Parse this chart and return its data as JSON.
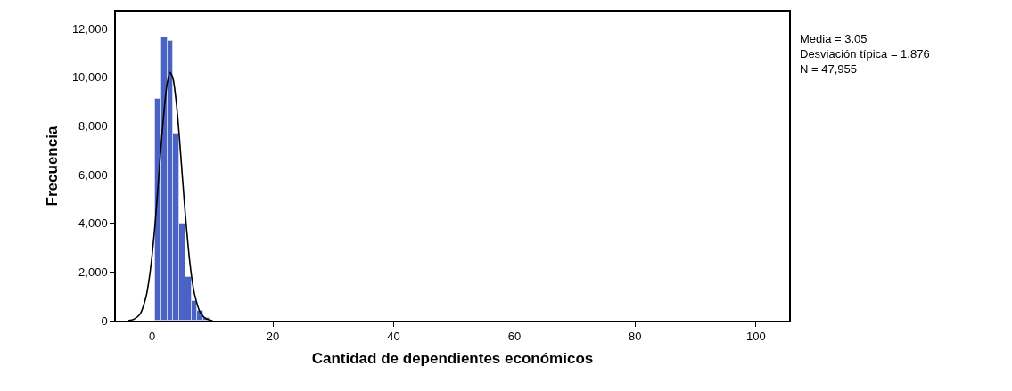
{
  "chart_data": {
    "type": "histogram",
    "xlabel": "Cantidad de dependientes económicos",
    "ylabel": "Frecuencia",
    "bins": [
      0.5,
      1.5,
      2.5,
      3.5,
      4.5,
      5.5,
      6.5,
      7.5,
      8.5,
      9.5,
      10.5
    ],
    "values": [
      9100,
      11650,
      11500,
      7700,
      4000,
      1800,
      790,
      400,
      120,
      null
    ],
    "color": "#4a62c4",
    "series": [
      {
        "type": "line",
        "color": "#000000",
        "x": [
          -4,
          -3,
          -2,
          -1,
          -0.5,
          0,
          0.5,
          1,
          1.5,
          2,
          2.5,
          3,
          3.5,
          4,
          4.5,
          5,
          5.5,
          6,
          6.5,
          7,
          8,
          9,
          10
        ],
        "values": [
          0,
          60,
          270,
          990,
          1700,
          2700,
          4000,
          5600,
          7250,
          8700,
          9770,
          10200,
          9900,
          8970,
          7570,
          5940,
          4350,
          2960,
          1880,
          1110,
          320,
          70,
          0
        ]
      }
    ],
    "xlim": [
      -6,
      105.5
    ],
    "xticks": [
      0,
      20,
      40,
      60,
      80,
      100
    ],
    "ylim": [
      0,
      12700
    ],
    "yticks": [
      0,
      {
        "value": 2000,
        "label": "2,000"
      },
      {
        "value": 4000,
        "label": "4,000"
      },
      {
        "value": 6000,
        "label": "6,000"
      },
      {
        "value": 8000,
        "label": "8,000"
      },
      {
        "value": 10000,
        "label": "10,000"
      },
      {
        "value": 12000,
        "label": "12,000"
      }
    ],
    "grid": false,
    "annotations": [
      "Media = 3.05",
      "Desviación típica = 1.876",
      "N = 47,955"
    ]
  }
}
